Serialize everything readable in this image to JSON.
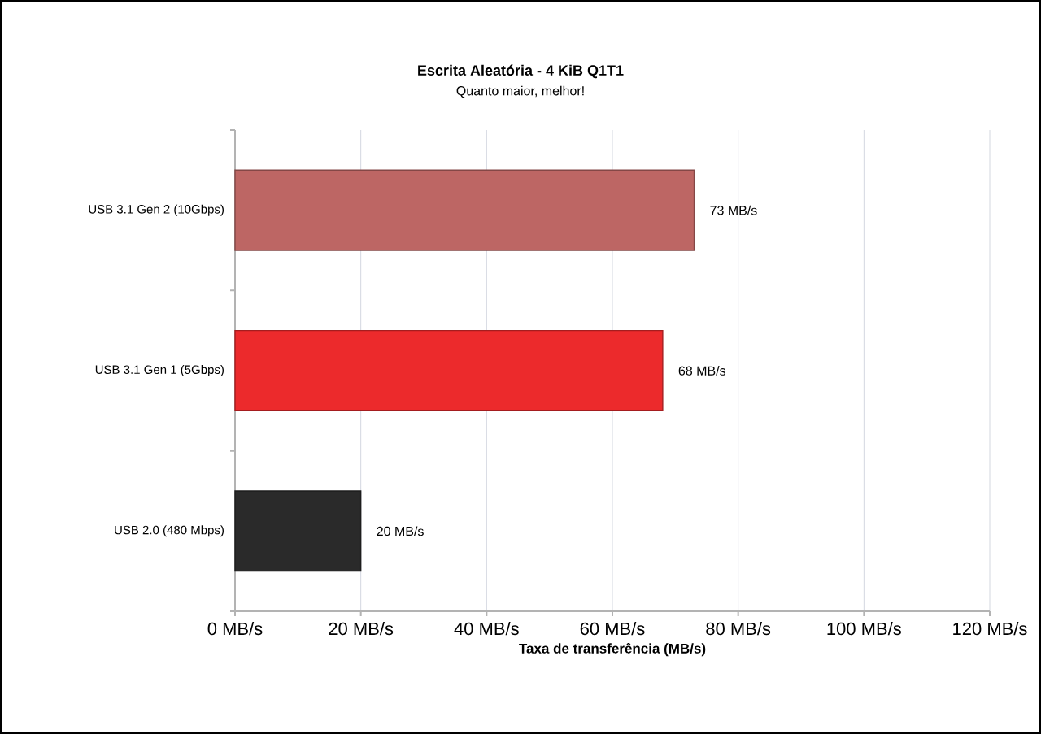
{
  "chart_data": {
    "type": "bar",
    "orientation": "horizontal",
    "title": "Escrita Aleatória - 4 KiB Q1T1",
    "subtitle": "Quanto maior, melhor!",
    "xlabel": "Taxa de transferência (MB/s)",
    "categories": [
      "USB 3.1 Gen 2 (10Gbps)",
      "USB 3.1 Gen 1 (5Gbps)",
      "USB 2.0 (480 Mbps)"
    ],
    "values": [
      73,
      68,
      20
    ],
    "colors": [
      "#bd6664",
      "#ec2a2c",
      "#2a2a2a"
    ],
    "value_labels": [
      "73 MB/s",
      "68 MB/s",
      "20 MB/s"
    ],
    "xlim": [
      0,
      120
    ],
    "xticks": [
      {
        "value": 0,
        "label": "0 MB/s"
      },
      {
        "value": 20,
        "label": "20 MB/s"
      },
      {
        "value": 40,
        "label": "40 MB/s"
      },
      {
        "value": 60,
        "label": "60 MB/s"
      },
      {
        "value": 80,
        "label": "80 MB/s"
      },
      {
        "value": 100,
        "label": "100 MB/s"
      },
      {
        "value": 120,
        "label": "120 MB/s"
      }
    ],
    "grid": "x"
  }
}
